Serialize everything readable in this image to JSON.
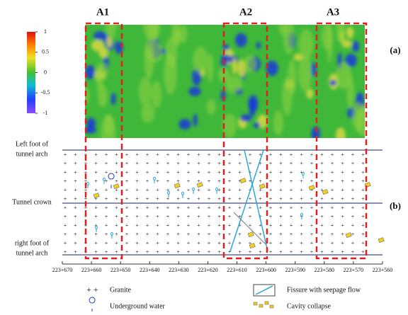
{
  "panel_labels": {
    "a": "(a)",
    "b": "(b)"
  },
  "zones": [
    "A1",
    "A2",
    "A3"
  ],
  "colorbar": {
    "range": [
      -1,
      1
    ],
    "ticks": [
      1,
      0.5,
      0,
      -0.5,
      -1
    ]
  },
  "section_labels": {
    "left_foot": [
      "Left foot of",
      "tunnel arch"
    ],
    "crown": "Tunnel crown",
    "right_foot": [
      "right foot of",
      "tunnel arch"
    ]
  },
  "x_axis": {
    "ticks": [
      "223+670",
      "223+660",
      "223+650",
      "223+640",
      "223+630",
      "223+620",
      "223+610",
      "223+600",
      "223+590",
      "223+580",
      "223+570",
      "223+560"
    ]
  },
  "legend": {
    "granite": "Granite",
    "water": "Underground water",
    "fissure": "Fissure with seepage flow",
    "cavity": "Cavity collapse"
  }
}
